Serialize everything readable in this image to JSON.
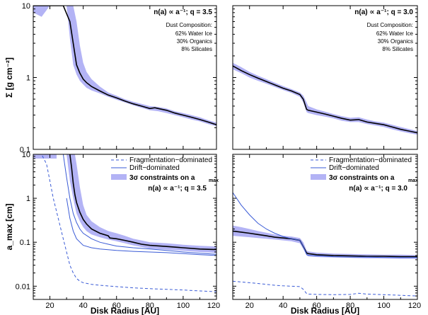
{
  "chart_data": [
    {
      "id": "top-left",
      "type": "line",
      "panel": "surface-density-q3.5",
      "xlim": [
        10,
        120
      ],
      "ylim": [
        0.1,
        10
      ],
      "yscale": "log",
      "xticks": [
        20,
        40,
        60,
        80,
        100,
        120
      ],
      "yticks": [
        0.1,
        1,
        10
      ],
      "ytick_labels": [
        "0.1",
        "1",
        "10"
      ],
      "xtick_labels": [],
      "ylabel": "Σ [g cm⁻²]",
      "xlabel": "",
      "title_text": "n(a) ∝ a⁻¹; q = 3.5",
      "composition_title": "Dust Composition:",
      "composition": [
        "62% Water Ice",
        "30% Organics",
        "8% Silicates"
      ],
      "series": [
        {
          "name": "best-fit",
          "x": [
            10,
            28,
            32,
            34,
            36,
            38,
            40,
            42,
            45,
            50,
            55,
            60,
            65,
            70,
            75,
            80,
            83,
            85,
            90,
            95,
            100,
            105,
            110,
            115,
            120
          ],
          "y": [
            10,
            10,
            6,
            3,
            1.5,
            1.15,
            0.95,
            0.85,
            0.75,
            0.65,
            0.57,
            0.52,
            0.47,
            0.43,
            0.4,
            0.37,
            0.38,
            0.37,
            0.35,
            0.32,
            0.3,
            0.28,
            0.26,
            0.24,
            0.22
          ]
        }
      ],
      "bands": [
        {
          "name": "3-sigma band",
          "x": [
            10,
            15,
            20,
            25,
            30,
            32,
            34,
            36,
            38,
            40,
            42,
            45,
            50,
            55,
            60,
            65,
            70,
            75,
            80,
            85,
            90,
            95,
            100,
            105,
            110,
            115,
            120
          ],
          "lower": [
            8,
            7,
            10,
            10,
            10,
            3.5,
            1.5,
            1.1,
            0.9,
            0.8,
            0.72,
            0.66,
            0.6,
            0.54,
            0.49,
            0.45,
            0.41,
            0.38,
            0.35,
            0.34,
            0.32,
            0.3,
            0.28,
            0.26,
            0.245,
            0.225,
            0.21
          ],
          "upper": [
            10,
            10,
            10,
            10,
            10,
            10,
            10,
            6,
            2.8,
            1.6,
            1.2,
            0.95,
            0.75,
            0.62,
            0.56,
            0.5,
            0.46,
            0.43,
            0.4,
            0.39,
            0.37,
            0.34,
            0.32,
            0.3,
            0.28,
            0.255,
            0.235
          ]
        }
      ]
    },
    {
      "id": "top-right",
      "type": "line",
      "panel": "surface-density-q3.0",
      "xlim": [
        10,
        120
      ],
      "ylim": [
        0.1,
        10
      ],
      "yscale": "log",
      "xticks": [
        20,
        40,
        60,
        80,
        100,
        120
      ],
      "yticks": [
        0.1,
        1,
        10
      ],
      "ytick_labels": [],
      "xtick_labels": [],
      "ylabel": "",
      "xlabel": "",
      "title_text": "n(a) ∝ a⁻¹; q = 3.0",
      "composition_title": "Dust Composition:",
      "composition": [
        "62% Water Ice",
        "30% Organics",
        "8% Silicates"
      ],
      "series": [
        {
          "name": "best-fit",
          "x": [
            10,
            15,
            20,
            25,
            30,
            35,
            40,
            45,
            50,
            52,
            54,
            55,
            60,
            65,
            70,
            75,
            80,
            85,
            90,
            95,
            100,
            105,
            110,
            115,
            120
          ],
          "y": [
            1.45,
            1.25,
            1.1,
            0.98,
            0.88,
            0.79,
            0.71,
            0.65,
            0.58,
            0.5,
            0.36,
            0.35,
            0.33,
            0.31,
            0.29,
            0.27,
            0.255,
            0.26,
            0.24,
            0.23,
            0.22,
            0.205,
            0.19,
            0.18,
            0.17
          ]
        }
      ],
      "bands": [
        {
          "name": "3-sigma band",
          "x": [
            10,
            15,
            20,
            25,
            30,
            35,
            40,
            45,
            50,
            52,
            54,
            55,
            60,
            65,
            70,
            75,
            80,
            85,
            90,
            95,
            100,
            105,
            110,
            115,
            120
          ],
          "lower": [
            1.3,
            1.15,
            1.0,
            0.9,
            0.82,
            0.74,
            0.67,
            0.61,
            0.54,
            0.45,
            0.33,
            0.32,
            0.3,
            0.285,
            0.27,
            0.25,
            0.24,
            0.24,
            0.225,
            0.215,
            0.205,
            0.19,
            0.178,
            0.168,
            0.16
          ],
          "upper": [
            1.6,
            1.4,
            1.2,
            1.06,
            0.95,
            0.85,
            0.76,
            0.69,
            0.62,
            0.56,
            0.45,
            0.4,
            0.36,
            0.335,
            0.31,
            0.29,
            0.275,
            0.28,
            0.26,
            0.245,
            0.235,
            0.22,
            0.205,
            0.192,
            0.18
          ]
        }
      ]
    },
    {
      "id": "bottom-left",
      "type": "line",
      "panel": "max-grain-size-q3.5",
      "xlim": [
        10,
        120
      ],
      "ylim": [
        0.005,
        10
      ],
      "yscale": "log",
      "xticks": [
        20,
        40,
        60,
        80,
        100,
        120
      ],
      "xtick_labels": [
        "20",
        "40",
        "60",
        "80",
        "100",
        "120"
      ],
      "yticks": [
        0.01,
        0.1,
        1,
        10
      ],
      "ytick_labels": [
        "0.01",
        "0.1",
        "1",
        "10"
      ],
      "ylabel": "a_max [cm]",
      "xlabel": "Disk Radius [AU]",
      "legend": {
        "fragmentation": "Fragmentation−dominated",
        "drift": "Drift−dominated",
        "band": "3σ constraints on a",
        "band_sub": "max"
      },
      "title_text": "n(a) ∝ a⁻¹; q = 3.5",
      "series": [
        {
          "name": "best-fit",
          "x": [
            32,
            33,
            34,
            35,
            36,
            38,
            40,
            42,
            45,
            50,
            55,
            56,
            60,
            65,
            70,
            75,
            80,
            90,
            100,
            110,
            120
          ],
          "y": [
            10,
            5,
            2.2,
            1.2,
            0.8,
            0.48,
            0.33,
            0.26,
            0.2,
            0.16,
            0.14,
            0.125,
            0.12,
            0.11,
            0.1,
            0.09,
            0.085,
            0.08,
            0.075,
            0.07,
            0.068
          ]
        },
        {
          "name": "Drift−dominated",
          "x": [
            28,
            30,
            32,
            34,
            36,
            38,
            40,
            45,
            50,
            55,
            60,
            70,
            80,
            90,
            100,
            110,
            120
          ],
          "y": [
            10,
            3,
            1.0,
            0.45,
            0.28,
            0.2,
            0.16,
            0.12,
            0.1,
            0.09,
            0.082,
            0.075,
            0.07,
            0.065,
            0.06,
            0.056,
            0.053
          ]
        },
        {
          "name": "Drift−dominated (lower)",
          "x": [
            30,
            32,
            34,
            36,
            40,
            45,
            50,
            60,
            70,
            80,
            90,
            100,
            110,
            120
          ],
          "y": [
            1.0,
            0.35,
            0.18,
            0.12,
            0.085,
            0.075,
            0.07,
            0.065,
            0.062,
            0.06,
            0.058,
            0.055,
            0.052,
            0.05
          ]
        },
        {
          "name": "Fragmentation−dominated",
          "x": [
            10,
            15,
            18,
            20,
            22,
            25,
            28,
            30,
            32,
            34,
            36,
            38,
            40,
            45,
            50,
            60,
            70,
            80,
            90,
            100,
            110,
            120
          ],
          "y": [
            10,
            10,
            6,
            2.5,
            1.0,
            0.35,
            0.12,
            0.06,
            0.03,
            0.02,
            0.015,
            0.013,
            0.012,
            0.011,
            0.0105,
            0.0098,
            0.0092,
            0.0088,
            0.0085,
            0.0082,
            0.0078,
            0.0075
          ]
        }
      ],
      "bands": [
        {
          "name": "3σ constraints",
          "x": [
            30,
            32,
            34,
            35,
            36,
            38,
            40,
            42,
            45,
            50,
            55,
            60,
            65,
            70,
            75,
            80,
            90,
            100,
            110,
            120
          ],
          "lower": [
            10,
            2.5,
            1.0,
            0.65,
            0.45,
            0.3,
            0.22,
            0.18,
            0.15,
            0.13,
            0.115,
            0.105,
            0.095,
            0.085,
            0.078,
            0.072,
            0.068,
            0.064,
            0.06,
            0.057
          ],
          "upper": [
            10,
            10,
            10,
            10,
            6,
            1.8,
            0.7,
            0.42,
            0.3,
            0.22,
            0.18,
            0.16,
            0.14,
            0.12,
            0.11,
            0.1,
            0.095,
            0.088,
            0.083,
            0.08
          ]
        },
        {
          "name": "3σ constraints (inner)",
          "x": [
            10,
            15,
            20,
            24
          ],
          "lower": [
            8,
            8,
            8,
            8
          ],
          "upper": [
            10,
            10,
            10,
            10
          ]
        }
      ]
    },
    {
      "id": "bottom-right",
      "type": "line",
      "panel": "max-grain-size-q3.0",
      "xlim": [
        10,
        120
      ],
      "ylim": [
        0.005,
        10
      ],
      "yscale": "log",
      "xticks": [
        20,
        40,
        60,
        80,
        100,
        120
      ],
      "xtick_labels": [
        "20",
        "40",
        "60",
        "80",
        "100",
        "120"
      ],
      "yticks": [
        0.01,
        0.1,
        1,
        10
      ],
      "ytick_labels": [],
      "ylabel": "",
      "xlabel": "Disk Radius [AU]",
      "legend": {
        "fragmentation": "Fragmentation−dominated",
        "drift": "Drift−dominated",
        "band": "3σ constraints on a",
        "band_sub": "max"
      },
      "title_text": "n(a) ∝ a⁻¹; q = 3.0",
      "series": [
        {
          "name": "best-fit",
          "x": [
            10,
            15,
            20,
            25,
            30,
            35,
            40,
            45,
            50,
            52,
            54,
            55,
            60,
            70,
            80,
            90,
            100,
            110,
            120
          ],
          "y": [
            0.18,
            0.17,
            0.16,
            0.15,
            0.14,
            0.13,
            0.125,
            0.12,
            0.11,
            0.08,
            0.057,
            0.055,
            0.052,
            0.05,
            0.049,
            0.048,
            0.048,
            0.047,
            0.047
          ]
        },
        {
          "name": "Drift−dominated",
          "x": [
            10,
            15,
            20,
            25,
            30,
            35,
            40,
            45,
            50,
            52,
            54,
            55,
            60,
            70,
            80,
            90,
            100,
            110,
            120
          ],
          "y": [
            1.35,
            0.7,
            0.42,
            0.27,
            0.2,
            0.16,
            0.135,
            0.12,
            0.11,
            0.08,
            0.053,
            0.05,
            0.049,
            0.047,
            0.046,
            0.046,
            0.045,
            0.045,
            0.045
          ]
        },
        {
          "name": "Fragmentation−dominated",
          "x": [
            10,
            15,
            20,
            25,
            30,
            35,
            40,
            45,
            50,
            52,
            54,
            55,
            60,
            70,
            80,
            85,
            90,
            100,
            110,
            120
          ],
          "y": [
            0.013,
            0.0125,
            0.012,
            0.0115,
            0.011,
            0.0105,
            0.0102,
            0.01,
            0.0098,
            0.0085,
            0.0068,
            0.0066,
            0.0065,
            0.0064,
            0.0065,
            0.0069,
            0.0066,
            0.0064,
            0.0062,
            0.006
          ]
        }
      ],
      "bands": [
        {
          "name": "3σ constraints",
          "x": [
            10,
            15,
            20,
            25,
            30,
            35,
            40,
            45,
            50,
            52,
            54,
            55,
            60,
            70,
            80,
            90,
            100,
            110,
            120
          ],
          "lower": [
            0.14,
            0.135,
            0.13,
            0.125,
            0.12,
            0.115,
            0.11,
            0.105,
            0.095,
            0.07,
            0.05,
            0.048,
            0.046,
            0.045,
            0.044,
            0.043,
            0.043,
            0.042,
            0.042
          ],
          "upper": [
            0.24,
            0.22,
            0.2,
            0.18,
            0.165,
            0.15,
            0.14,
            0.135,
            0.125,
            0.1,
            0.065,
            0.062,
            0.058,
            0.055,
            0.054,
            0.053,
            0.052,
            0.052,
            0.051
          ]
        }
      ]
    }
  ],
  "colors": {
    "band": "#b3b3f5",
    "best_fit": "#000000",
    "drift": "#3a5bd6",
    "fragmentation": "#3a5bd6"
  }
}
